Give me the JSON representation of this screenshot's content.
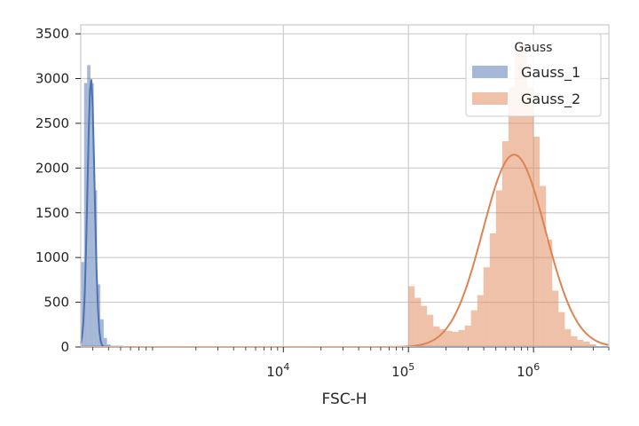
{
  "chart_data": {
    "type": "bar",
    "title": "",
    "xlabel": "FSC-H",
    "ylabel": "",
    "xscale": "log",
    "xlim": [
      240,
      4000000
    ],
    "ylim": [
      0,
      3600
    ],
    "yticks": [
      0,
      500,
      1000,
      1500,
      2000,
      2500,
      3000,
      3500
    ],
    "xticks": [
      {
        "base": "10",
        "exp": "4",
        "value": 10000
      },
      {
        "base": "10",
        "exp": "5",
        "value": 100000
      },
      {
        "base": "10",
        "exp": "6",
        "value": 1000000
      }
    ],
    "grid": true,
    "legend": {
      "title": "Gauss",
      "placement": "top-right"
    },
    "colors": {
      "Gauss_1": "#4c72b0",
      "Gauss_2": "#dd8452"
    },
    "series": [
      {
        "name": "Gauss_1",
        "kind": "histogram",
        "bin_edges": [
          240,
          255,
          270,
          287,
          305,
          324,
          344,
          366,
          389,
          414,
          440,
          468,
          497,
          530
        ],
        "counts": [
          950,
          2950,
          3150,
          2950,
          1750,
          700,
          310,
          100,
          30,
          10,
          5,
          0,
          0
        ],
        "curve": {
          "type": "lognormal",
          "peak": 3000,
          "center": 290,
          "sigma_log10": 0.028
        }
      },
      {
        "name": "Gauss_2",
        "kind": "histogram",
        "bin_edges": [
          100000,
          112000,
          126000,
          141000,
          158000,
          178000,
          200000,
          224000,
          251000,
          282000,
          316000,
          355000,
          398000,
          447000,
          501000,
          562000,
          631000,
          708000,
          794000,
          891000,
          1000000,
          1122000,
          1259000,
          1413000,
          1585000,
          1778000,
          1995000,
          2239000,
          2512000,
          2818000,
          3162000
        ],
        "counts": [
          680,
          550,
          460,
          360,
          230,
          200,
          180,
          170,
          190,
          240,
          410,
          580,
          890,
          1270,
          1750,
          2300,
          2900,
          3300,
          3350,
          2900,
          2350,
          1800,
          1200,
          630,
          390,
          200,
          120,
          80,
          60,
          30
        ],
        "curve": {
          "type": "lognormal",
          "peak": 2150,
          "center": 700000,
          "sigma_log10": 0.25
        }
      }
    ]
  }
}
